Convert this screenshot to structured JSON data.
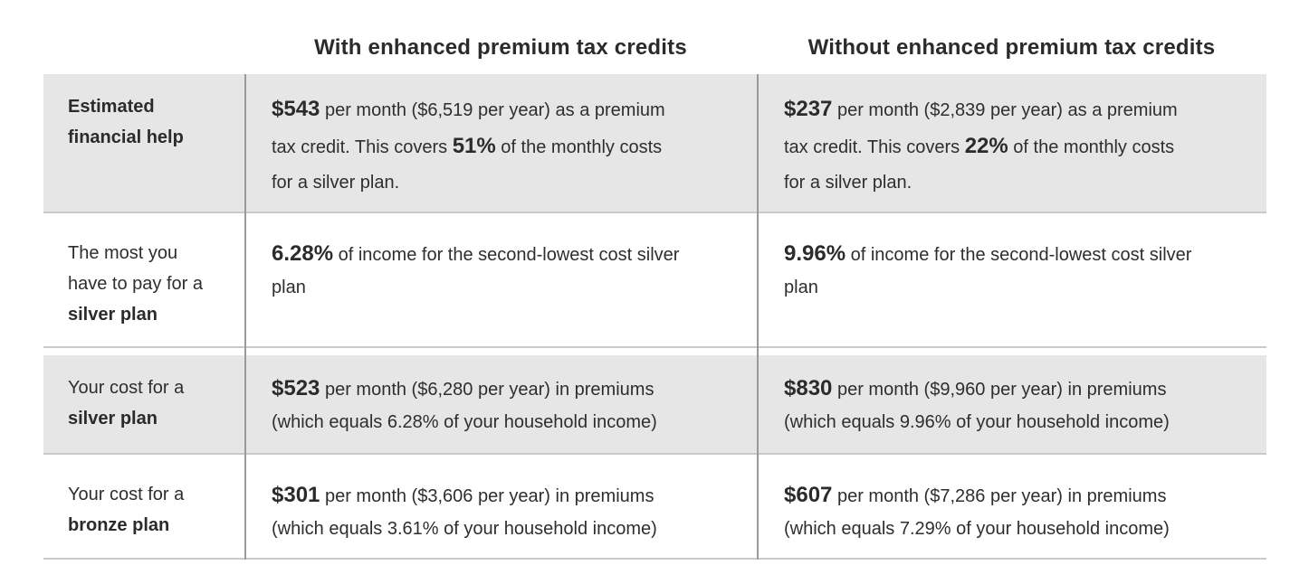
{
  "colors": {
    "row_shade": "#e6e6e6",
    "row_border": "#c9c9c9",
    "column_divider": "#9a9a9a",
    "text": "#2e2e2e",
    "bold_text": "#2b2b2b"
  },
  "chart_data": {
    "type": "table",
    "col_headers": [
      "With enhanced premium tax credits",
      "Without enhanced premium tax credits"
    ],
    "row_labels": [
      "Estimated financial help",
      "The most you have to pay for a silver plan",
      "Your cost for a silver plan",
      "Your cost for a bronze plan"
    ],
    "rows": [
      {
        "shaded": true,
        "label": [
          {
            "t": "Estimated",
            "c": "b"
          },
          {
            "br": true
          },
          {
            "t": "financial help",
            "c": "b"
          }
        ],
        "cells": [
          [
            {
              "t": "$543",
              "c": "v"
            },
            {
              "t": " per month ($6,519 per year) as a premium"
            },
            {
              "br": true
            },
            {
              "t": "tax credit. This covers "
            },
            {
              "t": "51%",
              "c": "v"
            },
            {
              "t": " of the monthly costs"
            },
            {
              "br": true
            },
            {
              "t": "for a silver plan."
            }
          ],
          [
            {
              "t": "$237",
              "c": "v"
            },
            {
              "t": " per month ($2,839 per year) as a premium"
            },
            {
              "br": true
            },
            {
              "t": "tax credit. This covers "
            },
            {
              "t": "22%",
              "c": "v"
            },
            {
              "t": " of the monthly costs"
            },
            {
              "br": true
            },
            {
              "t": "for a silver plan."
            }
          ]
        ]
      },
      {
        "shaded": false,
        "label": [
          {
            "t": "The most you"
          },
          {
            "br": true
          },
          {
            "t": "have to pay for a"
          },
          {
            "br": true
          },
          {
            "t": "silver plan",
            "c": "b"
          }
        ],
        "cells": [
          [
            {
              "t": "6.28%",
              "c": "v"
            },
            {
              "t": " of income for the second-lowest cost silver"
            },
            {
              "br": true
            },
            {
              "t": "plan"
            }
          ],
          [
            {
              "t": "9.96%",
              "c": "v"
            },
            {
              "t": " of income for the second-lowest cost silver"
            },
            {
              "br": true
            },
            {
              "t": "plan"
            }
          ]
        ]
      },
      {
        "shaded": true,
        "label": [
          {
            "t": "Your cost for a"
          },
          {
            "br": true
          },
          {
            "t": "silver plan",
            "c": "b"
          }
        ],
        "cells": [
          [
            {
              "t": "$523",
              "c": "v"
            },
            {
              "t": " per month ($6,280 per year) in premiums"
            },
            {
              "br": true
            },
            {
              "t": "(which equals 6.28% of your household income)"
            }
          ],
          [
            {
              "t": "$830",
              "c": "v"
            },
            {
              "t": " per month ($9,960 per year) in premiums"
            },
            {
              "br": true
            },
            {
              "t": "(which equals 9.96% of your household income)"
            }
          ]
        ]
      },
      {
        "shaded": false,
        "label": [
          {
            "t": "Your cost for a"
          },
          {
            "br": true
          },
          {
            "t": "bronze plan",
            "c": "b"
          }
        ],
        "cells": [
          [
            {
              "t": "$301",
              "c": "v"
            },
            {
              "t": " per month ($3,606 per year) in premiums"
            },
            {
              "br": true
            },
            {
              "t": "(which equals 3.61% of your household income)"
            }
          ],
          [
            {
              "t": "$607",
              "c": "v"
            },
            {
              "t": " per month ($7,286 per year) in premiums"
            },
            {
              "br": true
            },
            {
              "t": "(which equals 7.29% of your household income)"
            }
          ]
        ]
      }
    ]
  }
}
